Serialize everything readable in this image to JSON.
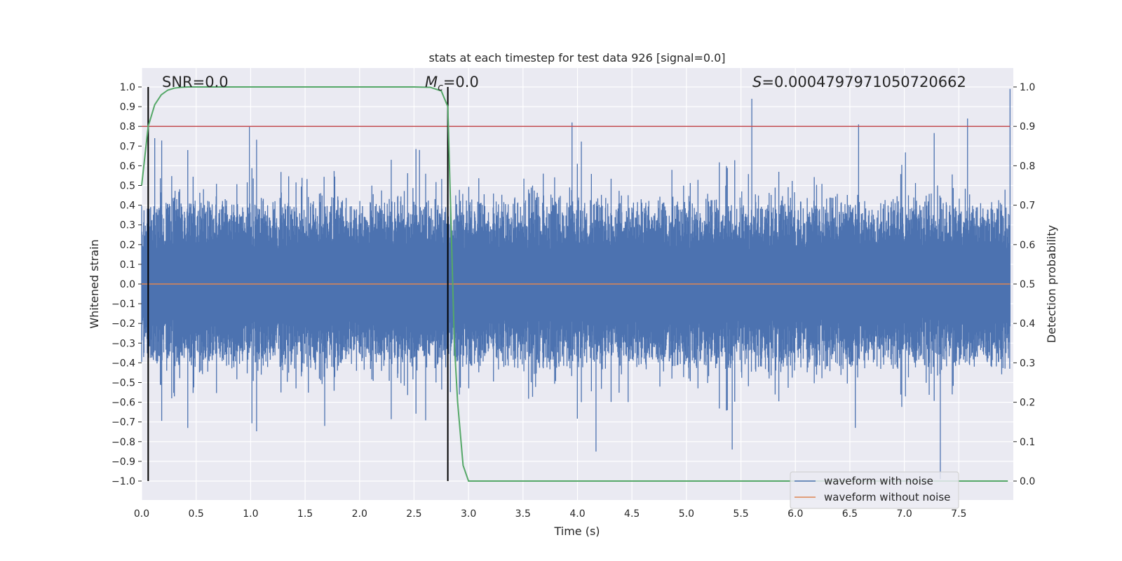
{
  "chart_data": {
    "type": "line",
    "title": "stats at each timestep for test data 926 [signal=0.0]",
    "xlabel": "Time (s)",
    "ylabel_left": "Whitened strain",
    "ylabel_right": "Detection probability",
    "xlim": [
      0.0,
      8.0
    ],
    "ylim_left": [
      -1.0,
      1.0
    ],
    "ylim_right": [
      0.0,
      1.0
    ],
    "x_ticks": [
      "0.0",
      "0.5",
      "1.0",
      "1.5",
      "2.0",
      "2.5",
      "3.0",
      "3.5",
      "4.0",
      "4.5",
      "5.0",
      "5.5",
      "6.0",
      "6.5",
      "7.0",
      "7.5"
    ],
    "y_ticks_left": [
      "1.0",
      "0.9",
      "0.8",
      "0.7",
      "0.6",
      "0.5",
      "0.4",
      "0.3",
      "0.2",
      "0.1",
      "0.0",
      "−0.1",
      "−0.2",
      "−0.3",
      "−0.4",
      "−0.5",
      "−0.6",
      "−0.7",
      "−0.8",
      "−0.9",
      "−1.0"
    ],
    "y_ticks_right": [
      "1.0",
      "0.9",
      "0.8",
      "0.7",
      "0.6",
      "0.5",
      "0.4",
      "0.3",
      "0.2",
      "0.1",
      "0.0"
    ],
    "grid": true,
    "annotations": {
      "snr": "SNR=0.0",
      "mc_sym": "M",
      "mc_sub": "c",
      "mc_val": "=0.0",
      "s_sym": "S",
      "s_val": "=0.0004797971050720662"
    },
    "threshold": {
      "value": 0.9,
      "axis": "right",
      "color": "#c44e52"
    },
    "vlines_x": [
      0.06,
      2.81
    ],
    "series": [
      {
        "name": "waveform with noise",
        "color": "#4c72b0",
        "axis": "left",
        "envelope_seed": 926,
        "peaks": [
          {
            "x": 0.12,
            "y": 0.74
          },
          {
            "x": 0.99,
            "y": 0.8
          },
          {
            "x": 2.55,
            "y": 0.68
          },
          {
            "x": 3.95,
            "y": 0.82
          },
          {
            "x": 5.6,
            "y": 0.94
          },
          {
            "x": 6.58,
            "y": 0.81
          },
          {
            "x": 7.58,
            "y": 0.84
          },
          {
            "x": 7.97,
            "y": 0.99
          },
          {
            "x": 4.17,
            "y": -0.85
          },
          {
            "x": 5.42,
            "y": -0.84
          },
          {
            "x": 7.33,
            "y": -0.99
          },
          {
            "x": 6.55,
            "y": -0.73
          },
          {
            "x": 1.68,
            "y": -0.72
          }
        ]
      },
      {
        "name": "waveform without noise",
        "color": "#dd8452",
        "axis": "left",
        "constant": 0.0
      },
      {
        "name": "detection probability",
        "color": "#55a868",
        "axis": "right",
        "x": [
          0.0,
          0.06,
          0.12,
          0.18,
          0.24,
          0.3,
          0.36,
          0.42,
          0.6,
          1.0,
          2.0,
          2.5,
          2.65,
          2.75,
          2.81,
          2.85,
          2.87,
          2.9,
          2.95,
          3.0,
          3.2,
          4.0,
          5.0,
          6.0,
          7.0,
          7.95
        ],
        "y": [
          0.75,
          0.9,
          0.955,
          0.98,
          0.992,
          0.997,
          0.999,
          1.0,
          1.0,
          1.0,
          1.0,
          1.0,
          0.999,
          0.99,
          0.95,
          0.55,
          0.35,
          0.2,
          0.04,
          0.0,
          0.0,
          0.0,
          0.0,
          0.0,
          0.0,
          0.0
        ]
      }
    ],
    "legend": [
      {
        "label": "waveform with noise",
        "color": "#4c72b0"
      },
      {
        "label": "waveform without noise",
        "color": "#dd8452"
      }
    ],
    "legend_position": "lower-right"
  }
}
